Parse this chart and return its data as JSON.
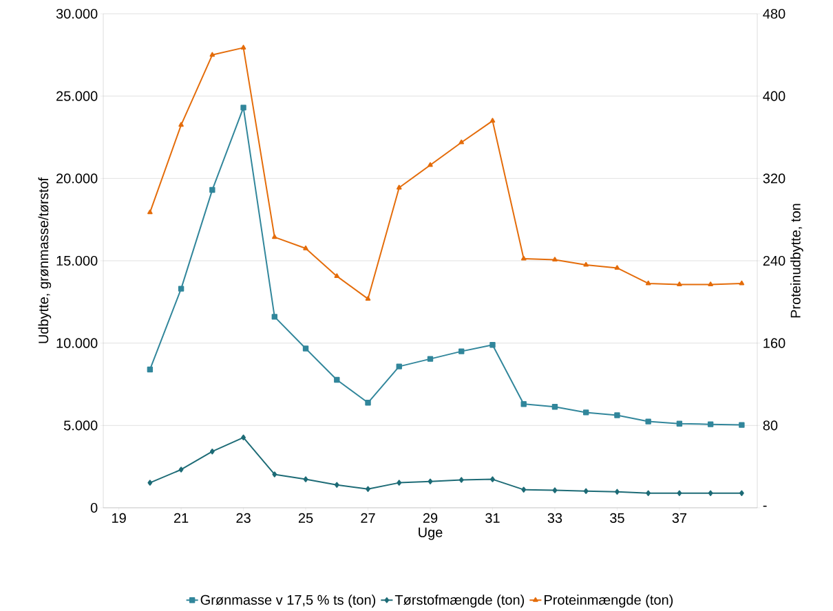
{
  "chart_data": {
    "type": "line",
    "xlabel": "Uge",
    "ylabel": "Udbytte, grønmasse/tørstof",
    "y2label": "Proteinudbytte, ton",
    "x": [
      20,
      21,
      22,
      23,
      24,
      25,
      26,
      27,
      28,
      29,
      30,
      31,
      32,
      33,
      34,
      35,
      36,
      37,
      38,
      39
    ],
    "xlim": [
      18.5,
      39.5
    ],
    "xticks": [
      19,
      21,
      23,
      25,
      27,
      29,
      31,
      33,
      35,
      37
    ],
    "ylim": [
      0,
      30000
    ],
    "yticks": [
      0,
      {
        "value": 5000,
        "label": "5.000"
      },
      {
        "value": 10000,
        "label": "10.000"
      },
      {
        "value": 15000,
        "label": "15.000"
      },
      {
        "value": 20000,
        "label": "20.000"
      },
      {
        "value": 25000,
        "label": "25.000"
      },
      {
        "value": 30000,
        "label": "30.000"
      }
    ],
    "y2lim": [
      0,
      480
    ],
    "y2ticks": [
      {
        "value": 0,
        "label": "-"
      },
      80,
      160,
      240,
      320,
      400,
      480
    ],
    "grid": "y",
    "legend": "bottom",
    "series": [
      {
        "name": "Grønmasse v 17,5 % ts (ton)",
        "color": "#31869b",
        "marker": "square",
        "values": [
          8400,
          13300,
          19300,
          24300,
          11600,
          9670,
          7770,
          6380,
          8580,
          9040,
          9500,
          9890,
          6300,
          6130,
          5790,
          5620,
          5240,
          5110,
          5070,
          5030
        ]
      },
      {
        "name": "Tørstofmængde (ton)",
        "color": "#1d6b76",
        "marker": "diamond",
        "values": [
          1520,
          2320,
          3420,
          4270,
          2030,
          1730,
          1390,
          1140,
          1520,
          1600,
          1690,
          1730,
          1100,
          1060,
          1010,
          970,
          890,
          890,
          890,
          890
        ]
      },
      {
        "name": "Proteinmængde (ton)",
        "color": "#e46c0a",
        "marker": "triangle",
        "axis": "y2",
        "values": [
          287,
          372,
          440,
          447,
          263,
          252,
          225,
          203,
          311,
          333,
          355,
          376,
          242,
          241,
          236,
          233,
          218,
          217,
          217,
          218
        ]
      }
    ]
  }
}
